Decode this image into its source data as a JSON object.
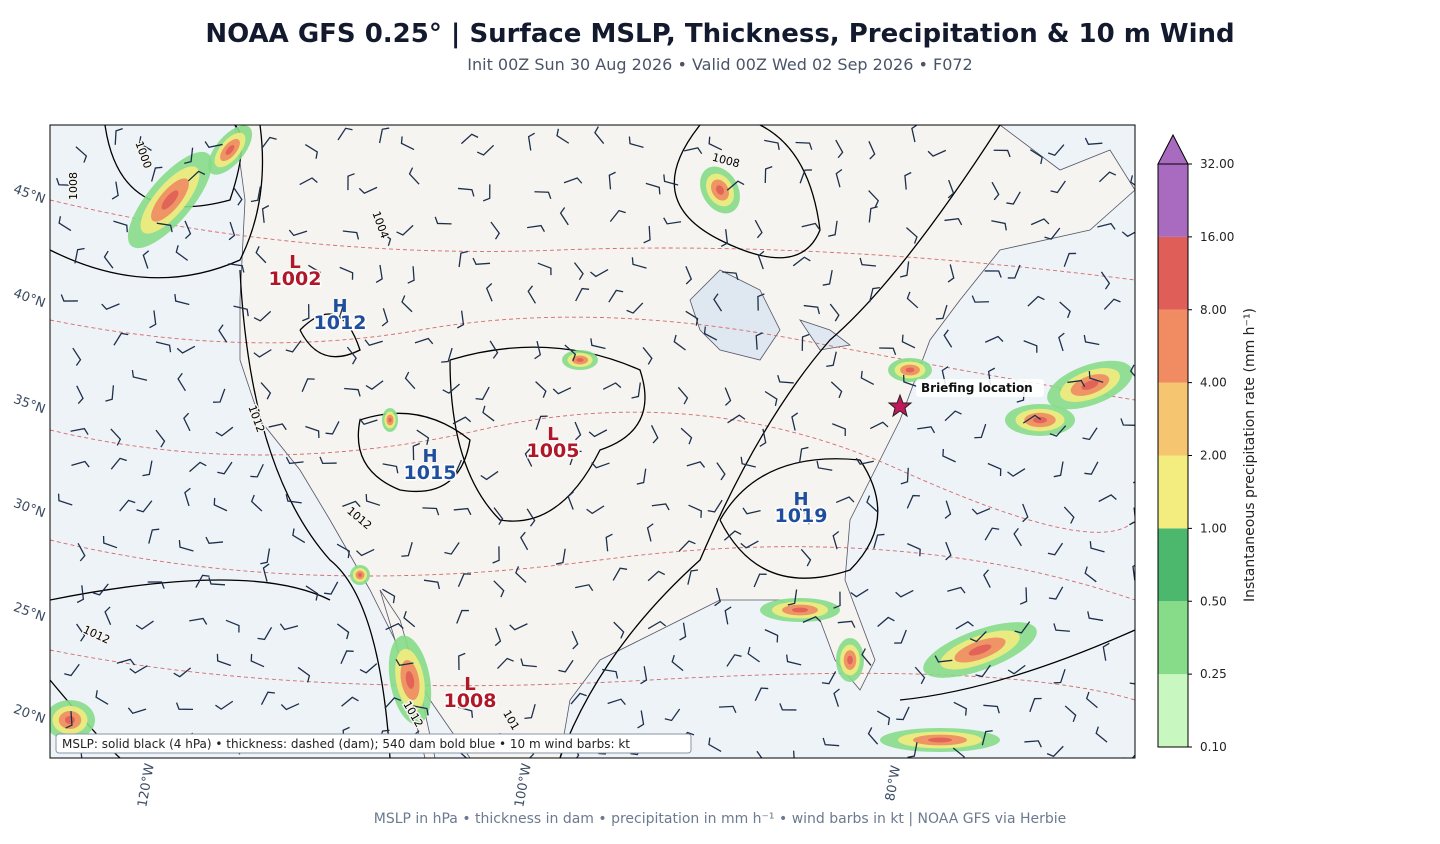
{
  "header": {
    "title": "NOAA GFS 0.25°  |  Surface MSLP, Thickness, Precipitation & 10 m Wind",
    "subtitle": "Init 00Z Sun 30 Aug 2026  •  Valid 00Z Wed 02 Sep 2026  •  F072"
  },
  "map": {
    "lat_labels": [
      "45°N",
      "40°N",
      "35°N",
      "30°N",
      "25°N",
      "20°N"
    ],
    "lon_labels": [
      "120°W",
      "100°W",
      "80°W"
    ],
    "pressure_centers": [
      {
        "type": "L",
        "value": 1002
      },
      {
        "type": "H",
        "value": 1012
      },
      {
        "type": "H",
        "value": 1015
      },
      {
        "type": "L",
        "value": 1005
      },
      {
        "type": "H",
        "value": 1019
      },
      {
        "type": "L",
        "value": 1008
      }
    ],
    "contour_labels": [
      "1000",
      "1008",
      "1004",
      "1008",
      "1012",
      "1012",
      "1012",
      "1012",
      "101"
    ],
    "annotation": "Briefing location",
    "legend_note": "MSLP: solid black (4 hPa)  •  thickness: dashed (dam); 540 dam bold blue  •  10 m wind barbs: kt"
  },
  "colorbar": {
    "label": "Instantaneous precipitation rate (mm h⁻¹)",
    "ticks": [
      "0.10",
      "0.25",
      "0.50",
      "1.00",
      "2.00",
      "4.00",
      "8.00",
      "16.00",
      "32.00"
    ],
    "colors": [
      "#c8f7c0",
      "#86dc88",
      "#4cb86e",
      "#f3ec7e",
      "#f6c570",
      "#f08b62",
      "#e05e58",
      "#a86bbf"
    ]
  },
  "footer": "MSLP in hPa • thickness in dam • precipitation in mm h⁻¹ • wind barbs in kt  |  NOAA GFS via Herbie"
}
